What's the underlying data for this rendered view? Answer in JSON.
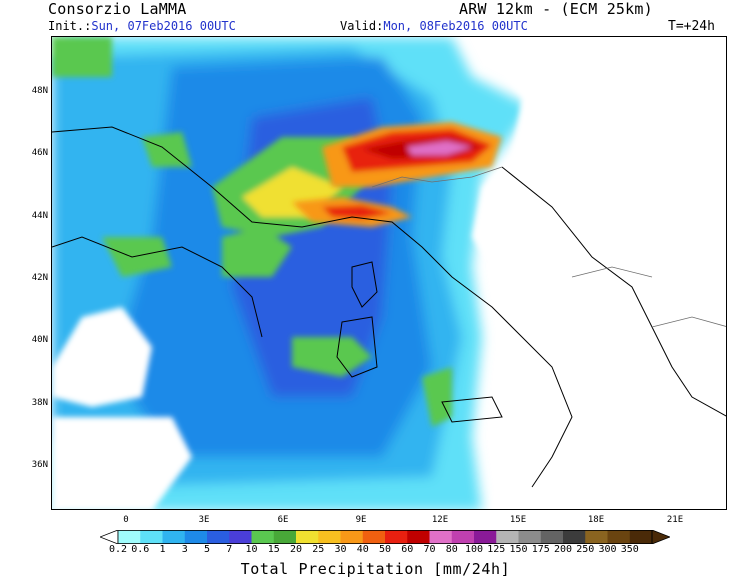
{
  "header": {
    "title_left": "Consorzio LaMMA",
    "title_right": "ARW 12km - (ECM 25km)",
    "init_label": "Init.:",
    "init_value": "Sun, 07Feb2016 00UTC",
    "valid_label": "Valid:",
    "valid_value": "Mon, 08Feb2016 00UTC",
    "lead_time": "T=+24h"
  },
  "map": {
    "lat_labels": [
      "48N",
      "46N",
      "44N",
      "42N",
      "40N",
      "38N",
      "36N"
    ],
    "lon_labels": [
      "0",
      "3E",
      "6E",
      "9E",
      "12E",
      "15E",
      "18E",
      "21E"
    ]
  },
  "colorbar": {
    "title": "Total Precipitation [mm/24h]",
    "thresholds": [
      "0.2",
      "0.6",
      "1",
      "3",
      "5",
      "7",
      "10",
      "15",
      "20",
      "25",
      "30",
      "40",
      "50",
      "60",
      "70",
      "80",
      "100",
      "125",
      "150",
      "175",
      "200",
      "250",
      "300",
      "350"
    ],
    "colors": [
      "#a0fcfc",
      "#5ee0f8",
      "#30b4f0",
      "#1e8ae8",
      "#2a5ee0",
      "#4a3ed8",
      "#5ac850",
      "#48a838",
      "#f0e030",
      "#f8c020",
      "#f89818",
      "#f06010",
      "#e82010",
      "#c00000",
      "#e070c8",
      "#c040b0",
      "#8a1a98",
      "#b4b4b4",
      "#8c8c8c",
      "#646464",
      "#3c3c3c",
      "#8a6420",
      "#6a4410",
      "#4a2a08"
    ]
  }
}
